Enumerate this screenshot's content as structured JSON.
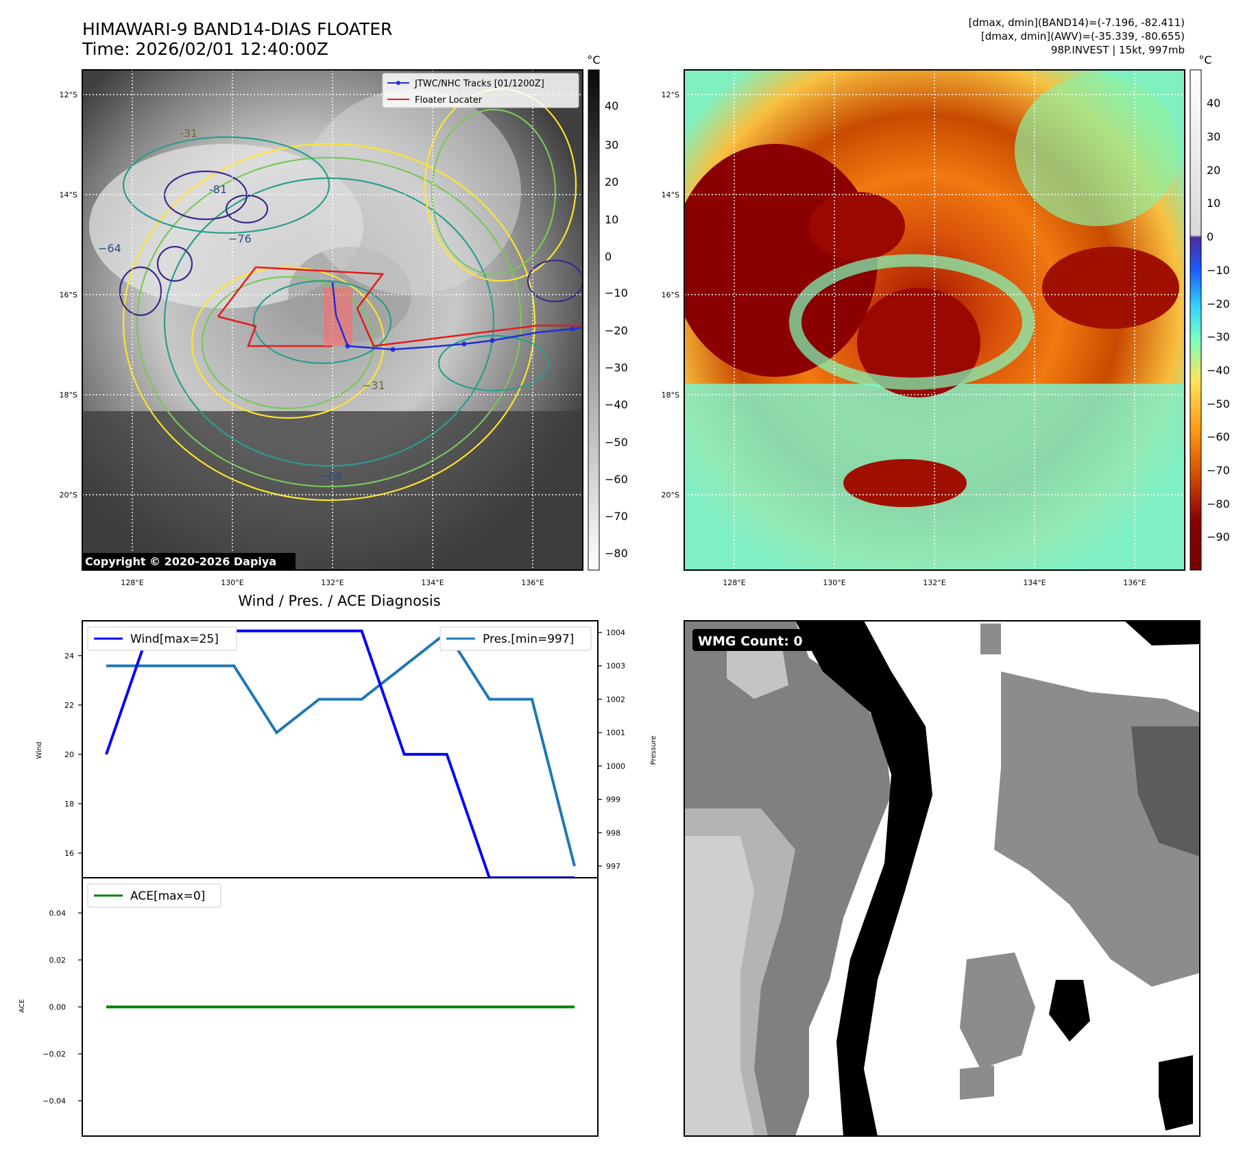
{
  "header": {
    "title": "HIMAWARI-9 BAND14-DIAS FLOATER",
    "time": "Time: 2026/02/01 12:40:00Z",
    "info_line1": "[dmax, dmin](BAND14)=(-7.196, -82.411)",
    "info_line2": "[dmax, dmin](AWV)=(-35.339, -80.655)",
    "info_line3": "98P.INVEST | 15kt, 997mb"
  },
  "map": {
    "lat_labels": [
      "12°S",
      "14°S",
      "16°S",
      "18°S",
      "20°S"
    ],
    "lon_labels": [
      "128°E",
      "130°E",
      "132°E",
      "134°E",
      "136°E"
    ],
    "contour_labels": [
      "-31",
      "-54",
      "-64",
      "-76",
      "-81",
      "−31",
      "−64",
      "−76"
    ],
    "copyright": "Copyright © 2020-2026 Dapiya",
    "legend": {
      "tracks": "JTWC/NHC Tracks [01/1200Z]",
      "locater": "Floater Locater"
    },
    "colors": {
      "tracks": "#1f2fd8",
      "locater": "#e41a1c"
    }
  },
  "colorbar_left": {
    "unit": "°C",
    "ticks": [
      "40",
      "30",
      "20",
      "10",
      "0",
      "−10",
      "−20",
      "−30",
      "−40",
      "−50",
      "−60",
      "−70",
      "−80"
    ]
  },
  "colorbar_right": {
    "unit": "°C",
    "ticks": [
      "40",
      "30",
      "20",
      "10",
      "0",
      "−10",
      "−20",
      "−30",
      "−40",
      "−50",
      "−60",
      "−70",
      "−80",
      "−90"
    ]
  },
  "diagnosis": {
    "title": "Wind / Pres. / ACE Diagnosis",
    "wind_axis_label": "Wind",
    "pressure_axis_label": "Pressure",
    "ace_axis_label": "ACE",
    "wind_ticks": [
      "24",
      "22",
      "20",
      "18",
      "16"
    ],
    "pressure_ticks": [
      "1004",
      "1003",
      "1002",
      "1001",
      "1000",
      "999",
      "998",
      "997"
    ],
    "ace_ticks": [
      "0.04",
      "0.02",
      "0.00",
      "−0.02",
      "−0.04"
    ],
    "legend_wind": "Wind[max=25]",
    "legend_pres": "Pres.[min=997]",
    "legend_ace": "ACE[max=0]",
    "colors": {
      "wind": "#0000ff",
      "pressure": "#1f77b4",
      "ace": "#008000"
    }
  },
  "wmg": {
    "label": "WMG Count: 0"
  },
  "chart_data": [
    {
      "type": "line",
      "title": "Wind / Pres. / ACE Diagnosis",
      "x": [
        0,
        1,
        2,
        3,
        4,
        5,
        6,
        7,
        8,
        9,
        10,
        11
      ],
      "series": [
        {
          "name": "Wind[max=25]",
          "axis": "left",
          "values": [
            20,
            25,
            25,
            25,
            25,
            25,
            25,
            20,
            20,
            15,
            15,
            15
          ]
        },
        {
          "name": "Pres.[min=997]",
          "axis": "right",
          "values": [
            1003,
            1003,
            1003,
            1003,
            1001,
            1002,
            1002,
            1003,
            1004,
            1002,
            1002,
            997
          ]
        }
      ],
      "ylabel": "Wind",
      "ylim": [
        15,
        25.3
      ],
      "y2label": "Pressure",
      "y2lim": [
        996.65,
        1004.35
      ],
      "legend": "top"
    },
    {
      "type": "line",
      "x": [
        0,
        1,
        2,
        3,
        4,
        5,
        6,
        7,
        8,
        9,
        10,
        11
      ],
      "series": [
        {
          "name": "ACE[max=0]",
          "values": [
            0,
            0,
            0,
            0,
            0,
            0,
            0,
            0,
            0,
            0,
            0,
            0
          ]
        }
      ],
      "ylabel": "ACE",
      "ylim": [
        -0.055,
        0.055
      ],
      "legend": "top-left"
    }
  ]
}
